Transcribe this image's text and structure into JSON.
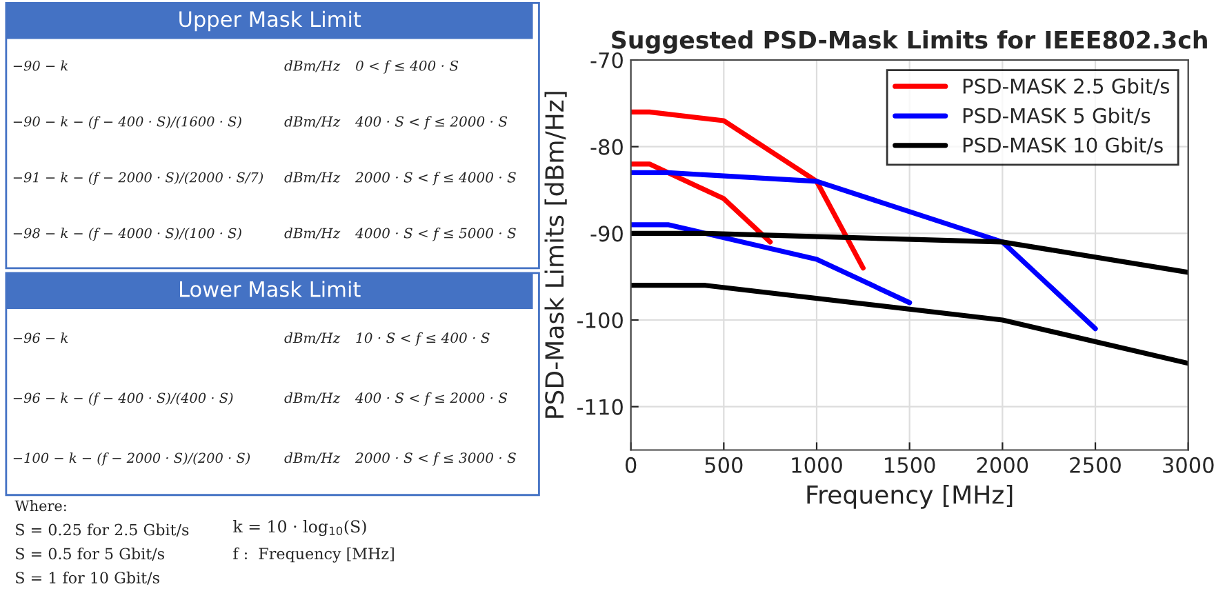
{
  "chart_data": {
    "type": "line",
    "title": "Suggested PSD-Mask Limits for IEEE802.3ch",
    "xlabel": "Frequency [MHz]",
    "ylabel": "PSD-Mask Limits [dBm/Hz]",
    "xlim": [
      0,
      3000
    ],
    "xticks": [
      0,
      500,
      1000,
      1500,
      2000,
      2500,
      3000
    ],
    "ylim": [
      -115,
      -70
    ],
    "yticks": [
      -110,
      -100,
      -90,
      -80,
      -70
    ],
    "grid": true,
    "legend": "top right",
    "line_style": "solid",
    "series": [
      {
        "name": "PSD-MASK 2.5 Gbit/s",
        "color": "#ff0000",
        "x": [
          0,
          100,
          500,
          1000,
          1250
        ],
        "values": [
          -76,
          -76,
          -77,
          -84,
          -94
        ]
      },
      {
        "color": "#ff0000",
        "x": [
          0,
          100,
          500,
          750
        ],
        "values": [
          -82,
          -82,
          -86,
          -91
        ]
      },
      {
        "name": "PSD-MASK 5 Gbit/s",
        "color": "#0000ff",
        "x": [
          0,
          200,
          1000,
          2000,
          2500
        ],
        "values": [
          -83,
          -83,
          -84,
          -91,
          -101
        ]
      },
      {
        "color": "#0000ff",
        "x": [
          0,
          200,
          1000,
          1500
        ],
        "values": [
          -89,
          -89,
          -93,
          -98
        ]
      },
      {
        "name": "PSD-MASK 10 Gbit/s",
        "color": "#000000",
        "x": [
          0,
          400,
          2000,
          3000
        ],
        "values": [
          -90,
          -90,
          -91,
          -94.5
        ]
      },
      {
        "color": "#000000",
        "x": [
          0,
          400,
          2000,
          3000
        ],
        "values": [
          -96,
          -96,
          -100,
          -105
        ]
      }
    ],
    "annotations": [
      "Upper Mask Limit",
      "−90 − k",
      "dBm/Hz",
      "0 < f ≤ 400 · S",
      "−90 − k − (f − 400 · S)/(1600 · S)",
      "dBm/Hz",
      "400 · S < f ≤ 2000 · S",
      "−91 − k − (f − 2000 · S)/(2000 · S/7)",
      "dBm/Hz",
      "2000 · S < f ≤ 4000 · S",
      "−98 − k − (f − 4000 · S)/(100 · S)",
      "dBm/Hz",
      "4000 · S < f ≤ 5000 · S",
      "Lower Mask Limit",
      "−96 − k",
      "dBm/Hz",
      "10 · S < f ≤ 400 · S",
      "−96 − k − (f − 400 · S)/(400 · S)",
      "dBm/Hz",
      "400 · S < f ≤ 2000 · S",
      "−100 − k − (f − 2000 · S)/(200 · S)",
      "dBm/Hz",
      "2000 · S < f ≤ 3000 · S",
      "Where:",
      "S = 0.25 for 2.5 Gbit/s",
      "S = 0.5 for 5 Gbit/s",
      "S = 1 for 10 Gbit/s",
      "k = 10 · log$_{10}$(S)",
      "f :  Frequency [MHz]"
    ]
  }
}
